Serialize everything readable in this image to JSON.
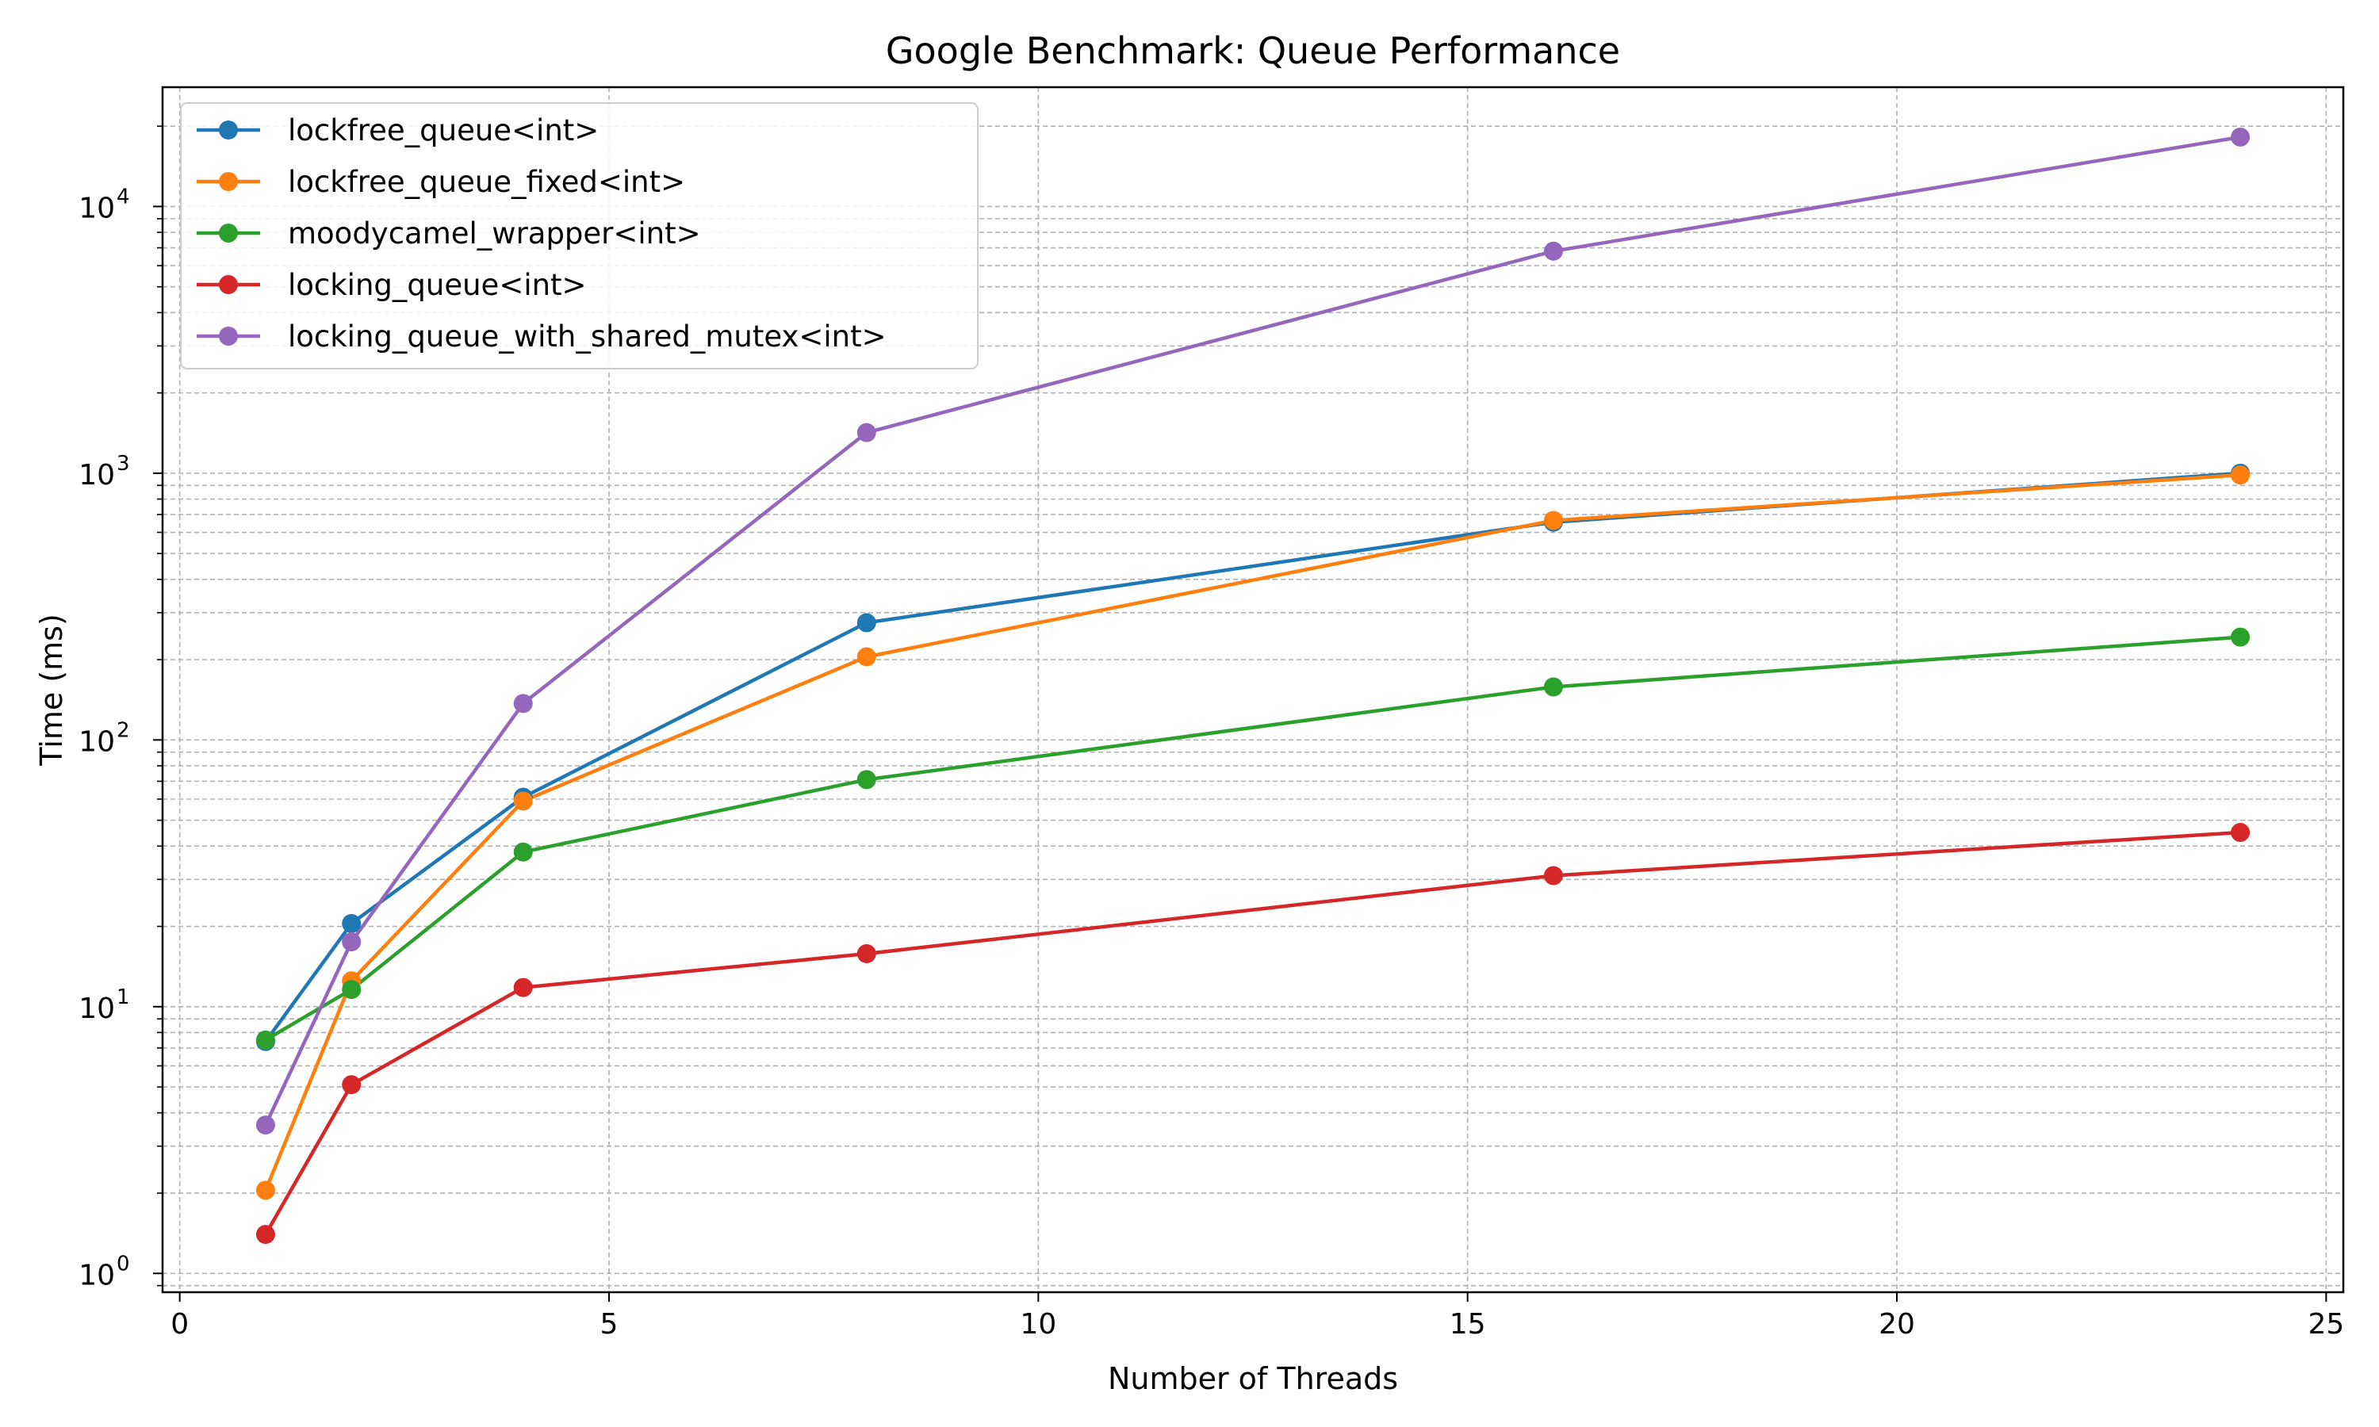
{
  "chart_data": {
    "type": "line",
    "title": "Google Benchmark: Queue Performance",
    "xlabel": "Number of Threads",
    "ylabel": "Time (ms)",
    "x": [
      1,
      2,
      4,
      8,
      16,
      24
    ],
    "xlim": [
      -0.2,
      25.2
    ],
    "ylim": [
      0.85,
      28000
    ],
    "yscale": "log",
    "grid": true,
    "legend_position": "top-left",
    "x_ticks": [
      0,
      5,
      10,
      15,
      20,
      25
    ],
    "y_ticks": [
      {
        "base": "10",
        "exp": "0",
        "value": 1
      },
      {
        "base": "10",
        "exp": "1",
        "value": 10
      },
      {
        "base": "10",
        "exp": "2",
        "value": 100
      },
      {
        "base": "10",
        "exp": "3",
        "value": 1000
      },
      {
        "base": "10",
        "exp": "4",
        "value": 10000
      }
    ],
    "series": [
      {
        "name": "lockfree_queue<int>",
        "color": "#1f77b4",
        "values": [
          7.4,
          20.5,
          61,
          275,
          655,
          1000
        ]
      },
      {
        "name": "lockfree_queue_fixed<int>",
        "color": "#ff7f0e",
        "values": [
          2.05,
          12.5,
          59,
          205,
          665,
          985
        ]
      },
      {
        "name": "moodycamel_wrapper<int>",
        "color": "#2ca02c",
        "values": [
          7.5,
          11.6,
          38,
          71,
          158,
          243
        ]
      },
      {
        "name": "locking_queue<int>",
        "color": "#d62728",
        "values": [
          1.4,
          5.1,
          11.8,
          15.8,
          31,
          45
        ]
      },
      {
        "name": "locking_queue_with_shared_mutex<int>",
        "color": "#9467bd",
        "values": [
          3.6,
          17.5,
          137,
          1420,
          6800,
          18200
        ]
      }
    ]
  }
}
